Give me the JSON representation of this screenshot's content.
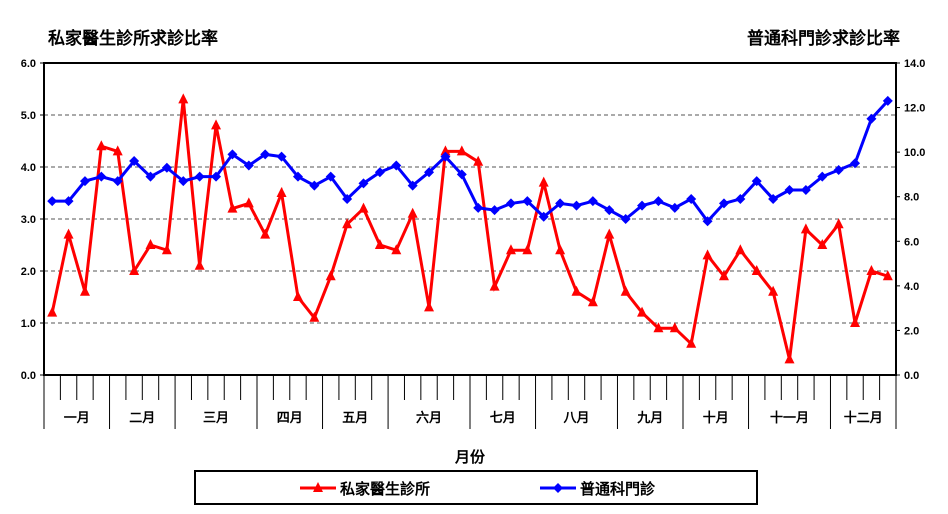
{
  "chart_data": {
    "type": "line",
    "title_left": "私家醫生診所求診比率",
    "title_right": "普通科門診求診比率",
    "xlabel": "月份",
    "months": [
      {
        "label": "一月",
        "weeks": 4
      },
      {
        "label": "二月",
        "weeks": 4
      },
      {
        "label": "三月",
        "weeks": 5
      },
      {
        "label": "四月",
        "weeks": 4
      },
      {
        "label": "五月",
        "weeks": 4
      },
      {
        "label": "六月",
        "weeks": 5
      },
      {
        "label": "七月",
        "weeks": 4
      },
      {
        "label": "八月",
        "weeks": 5
      },
      {
        "label": "九月",
        "weeks": 4
      },
      {
        "label": "十月",
        "weeks": 4
      },
      {
        "label": "十一月",
        "weeks": 5
      },
      {
        "label": "十二月",
        "weeks": 4
      }
    ],
    "y_left": {
      "range": [
        0,
        6
      ],
      "ticks": [
        "0.0",
        "1.0",
        "2.0",
        "3.0",
        "4.0",
        "5.0",
        "6.0"
      ]
    },
    "y_right": {
      "range": [
        0,
        14
      ],
      "ticks": [
        "0.0",
        "2.0",
        "4.0",
        "6.0",
        "8.0",
        "10.0",
        "12.0",
        "14.0"
      ]
    },
    "grid": "dashed horizontal",
    "legend_position": "bottom",
    "series": [
      {
        "name": "私家醫生診所",
        "axis": "left",
        "color": "#ff0000",
        "marker": "triangle",
        "values": [
          1.2,
          2.7,
          1.6,
          4.4,
          4.3,
          2.0,
          2.5,
          2.4,
          5.3,
          2.1,
          4.8,
          3.2,
          3.3,
          2.7,
          3.5,
          1.5,
          1.1,
          1.9,
          2.9,
          3.2,
          2.5,
          2.4,
          3.1,
          1.3,
          4.3,
          4.3,
          4.1,
          1.7,
          2.4,
          2.4,
          3.7,
          2.4,
          1.6,
          1.4,
          2.7,
          1.6,
          1.2,
          0.9,
          0.9,
          0.6,
          2.3,
          1.9,
          2.4,
          2.0,
          1.6,
          0.3,
          2.8,
          2.5,
          2.9,
          1.0,
          2.0,
          1.9
        ]
      },
      {
        "name": "普通科門診",
        "axis": "right",
        "color": "#0000ff",
        "marker": "diamond",
        "values": [
          7.8,
          7.8,
          8.7,
          8.9,
          8.7,
          9.6,
          8.9,
          9.3,
          8.7,
          8.9,
          8.9,
          9.9,
          9.4,
          9.9,
          9.8,
          8.9,
          8.5,
          8.9,
          7.9,
          8.6,
          9.1,
          9.4,
          8.5,
          9.1,
          9.8,
          9.0,
          7.5,
          7.4,
          7.7,
          7.8,
          7.1,
          7.7,
          7.6,
          7.8,
          7.4,
          7.0,
          7.6,
          7.8,
          7.5,
          7.9,
          6.9,
          7.7,
          7.9,
          8.7,
          7.9,
          8.3,
          8.3,
          8.9,
          9.2,
          9.5,
          11.5,
          12.3
        ]
      }
    ]
  }
}
